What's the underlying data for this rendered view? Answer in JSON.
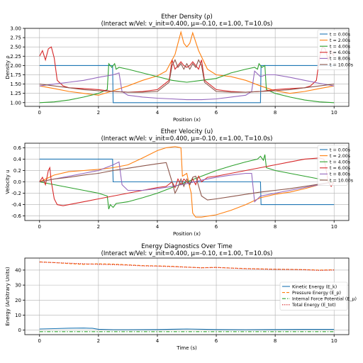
{
  "chart_data": [
    {
      "type": "line",
      "title": "Ether Density (ρ)",
      "subtitle": "(Interact w/Vel: v_init=0.400, μ=-0.10, ε=1.00, T=10.0s)",
      "xlabel": "Position (x)",
      "ylabel": "Density ρ",
      "xlim": [
        -0.5,
        10.5
      ],
      "ylim": [
        0.9,
        3.0
      ],
      "xticks": [
        0,
        2,
        4,
        6,
        8,
        10
      ],
      "yticks": [
        1.0,
        1.25,
        1.5,
        1.75,
        2.0,
        2.25,
        2.5,
        2.75,
        3.0
      ],
      "ytick_labels": [
        "1.00",
        "1.25",
        "1.50",
        "1.75",
        "2.00",
        "2.25",
        "2.50",
        "2.75",
        "3.00"
      ],
      "grid": true,
      "legend": "top-right",
      "series": [
        {
          "name": "t = 0.00s",
          "color": "#1f77b4",
          "style": "solid",
          "x": [
            0,
            2.48,
            2.5,
            7.5,
            7.52,
            10
          ],
          "y": [
            2.0,
            2.0,
            1.0,
            1.0,
            2.0,
            2.0
          ]
        },
        {
          "name": "t = 2.00s",
          "color": "#ff7f0e",
          "style": "solid",
          "x": [
            0,
            0.5,
            1.0,
            1.5,
            2.0,
            2.5,
            3.0,
            3.5,
            4.0,
            4.3,
            4.6,
            4.8,
            4.9,
            5.0,
            5.1,
            5.2,
            5.4,
            5.7,
            6.0,
            6.5,
            7.0,
            7.5,
            8.0,
            8.5,
            9.0,
            9.5,
            10
          ],
          "y": [
            1.45,
            1.38,
            1.3,
            1.25,
            1.2,
            1.32,
            1.45,
            1.6,
            1.72,
            1.85,
            2.3,
            2.9,
            2.6,
            2.5,
            2.6,
            2.88,
            2.4,
            1.9,
            1.75,
            1.7,
            1.6,
            1.45,
            1.32,
            1.25,
            1.3,
            1.38,
            1.45
          ]
        },
        {
          "name": "t = 4.00s",
          "color": "#2ca02c",
          "style": "solid",
          "x": [
            0,
            0.5,
            1.0,
            1.5,
            2.0,
            2.3,
            2.35,
            2.45,
            2.55,
            2.6,
            2.7,
            3.0,
            3.5,
            4.0,
            4.5,
            5.0,
            5.5,
            6.0,
            6.5,
            7.0,
            7.3,
            7.4,
            7.45,
            7.55,
            7.65,
            7.7,
            8.0,
            8.5,
            9.0,
            9.5,
            10
          ],
          "y": [
            1.0,
            1.02,
            1.07,
            1.15,
            1.25,
            1.35,
            2.05,
            1.95,
            2.05,
            1.9,
            1.95,
            1.9,
            1.8,
            1.7,
            1.6,
            1.55,
            1.6,
            1.65,
            1.8,
            1.9,
            1.95,
            1.9,
            2.05,
            1.95,
            2.0,
            1.35,
            1.25,
            1.15,
            1.07,
            1.02,
            1.0
          ]
        },
        {
          "name": "t = 6.00s",
          "color": "#d62728",
          "style": "solid",
          "x": [
            0,
            0.1,
            0.2,
            0.3,
            0.4,
            0.5,
            0.6,
            0.8,
            1.0,
            1.5,
            2.0,
            2.5,
            3.0,
            3.5,
            4.0,
            4.4,
            4.5,
            4.6,
            4.7,
            4.8,
            4.9,
            5.0,
            5.1,
            5.2,
            5.3,
            5.4,
            5.5,
            5.6,
            6.0,
            6.5,
            7.0,
            7.5,
            8.0,
            8.5,
            9.0,
            9.2,
            9.4,
            9.5,
            9.6,
            9.7,
            9.8,
            9.9,
            10
          ],
          "y": [
            2.25,
            2.4,
            2.15,
            2.45,
            2.5,
            2.2,
            1.6,
            1.45,
            1.4,
            1.38,
            1.35,
            1.3,
            1.28,
            1.3,
            1.35,
            1.6,
            2.15,
            1.9,
            2.0,
            2.1,
            2.0,
            1.95,
            2.0,
            2.1,
            2.0,
            1.9,
            2.15,
            1.6,
            1.35,
            1.3,
            1.28,
            1.3,
            1.35,
            1.38,
            1.4,
            1.45,
            1.6,
            2.2,
            2.5,
            2.45,
            2.15,
            2.4,
            2.25
          ]
        },
        {
          "name": "t = 8.00s",
          "color": "#9467bd",
          "style": "solid",
          "x": [
            0,
            0.5,
            1.0,
            1.5,
            2.0,
            2.5,
            2.7,
            2.8,
            3.0,
            3.5,
            4.0,
            4.5,
            5.0,
            5.5,
            6.0,
            6.5,
            7.0,
            7.2,
            7.3,
            7.5,
            7.7,
            8.0,
            8.5,
            9.0,
            9.5,
            10
          ],
          "y": [
            1.45,
            1.5,
            1.55,
            1.6,
            1.68,
            1.75,
            1.8,
            1.3,
            1.2,
            1.15,
            1.12,
            1.1,
            1.08,
            1.08,
            1.1,
            1.15,
            1.2,
            1.3,
            1.85,
            1.7,
            1.75,
            1.75,
            1.68,
            1.6,
            1.52,
            1.45
          ]
        },
        {
          "name": "t = 10.00s",
          "color": "#8c564b",
          "style": "solid",
          "x": [
            0,
            0.5,
            1.0,
            1.5,
            2.0,
            2.5,
            3.0,
            3.5,
            4.0,
            4.4,
            4.5,
            4.6,
            4.7,
            4.8,
            4.9,
            5.0,
            5.1,
            5.2,
            5.3,
            5.4,
            5.5,
            5.6,
            6.0,
            6.5,
            7.0,
            7.5,
            8.0,
            8.5,
            9.0,
            9.5,
            10
          ],
          "y": [
            1.5,
            1.45,
            1.4,
            1.35,
            1.32,
            1.3,
            1.28,
            1.28,
            1.3,
            1.55,
            2.0,
            2.15,
            1.95,
            2.05,
            1.9,
            2.05,
            1.9,
            2.05,
            1.95,
            2.15,
            2.0,
            1.55,
            1.3,
            1.28,
            1.28,
            1.3,
            1.32,
            1.35,
            1.4,
            1.45,
            1.5
          ]
        }
      ]
    },
    {
      "type": "line",
      "title": "Ether Velocity (u)",
      "subtitle": "(Interact w/Vel: v_init=0.400, μ=-0.10, ε=1.00, T=10.0s)",
      "xlabel": "Position (x)",
      "ylabel": "Velocity u",
      "xlim": [
        -0.5,
        10.5
      ],
      "ylim": [
        -0.68,
        0.68
      ],
      "xticks": [
        0,
        2,
        4,
        6,
        8,
        10
      ],
      "yticks": [
        -0.6,
        -0.4,
        -0.2,
        0.0,
        0.2,
        0.4,
        0.6
      ],
      "ytick_labels": [
        "-0.6",
        "-0.4",
        "-0.2",
        "0.0",
        "0.2",
        "0.4",
        "0.6"
      ],
      "grid": true,
      "legend": "top-right",
      "series": [
        {
          "name": "t = 0.00s",
          "color": "#1f77b4",
          "style": "solid",
          "x": [
            0,
            2.48,
            2.5,
            7.5,
            7.52,
            10
          ],
          "y": [
            0.4,
            0.4,
            0.0,
            0.0,
            -0.4,
            -0.4
          ]
        },
        {
          "name": "t = 2.00s",
          "color": "#ff7f0e",
          "style": "solid",
          "x": [
            0,
            0.5,
            1.0,
            1.5,
            2.0,
            2.5,
            3.0,
            3.5,
            4.0,
            4.3,
            4.6,
            4.8,
            4.85,
            5.0,
            5.1,
            5.15,
            5.2,
            5.3,
            5.5,
            6.0,
            6.5,
            7.0,
            7.5,
            8.0,
            8.5,
            9.0,
            9.5,
            10
          ],
          "y": [
            0.0,
            0.12,
            0.18,
            0.2,
            0.22,
            0.25,
            0.3,
            0.42,
            0.55,
            0.6,
            0.62,
            0.6,
            0.1,
            0.15,
            -0.1,
            -0.2,
            -0.55,
            -0.62,
            -0.62,
            -0.58,
            -0.5,
            -0.4,
            -0.28,
            -0.22,
            -0.18,
            -0.12,
            -0.05,
            0.0
          ]
        },
        {
          "name": "t = 4.00s",
          "color": "#2ca02c",
          "style": "solid",
          "x": [
            0,
            0.5,
            1.0,
            1.5,
            2.0,
            2.3,
            2.35,
            2.4,
            2.5,
            2.6,
            3.0,
            3.5,
            4.0,
            4.5,
            5.0,
            5.5,
            6.0,
            6.5,
            7.0,
            7.4,
            7.5,
            7.6,
            7.65,
            7.7,
            8.0,
            8.5,
            9.0,
            9.5,
            10
          ],
          "y": [
            0.0,
            -0.05,
            -0.1,
            -0.15,
            -0.2,
            -0.25,
            -0.48,
            -0.4,
            -0.45,
            -0.38,
            -0.35,
            -0.28,
            -0.2,
            -0.1,
            0.0,
            0.1,
            0.2,
            0.28,
            0.35,
            0.4,
            0.45,
            0.38,
            0.48,
            0.25,
            0.2,
            0.15,
            0.1,
            0.05,
            0.0
          ]
        },
        {
          "name": "t = 6.00s",
          "color": "#d62728",
          "style": "solid",
          "x": [
            0,
            0.1,
            0.2,
            0.3,
            0.35,
            0.4,
            0.5,
            0.6,
            0.8,
            1.0,
            1.5,
            2.0,
            2.5,
            3.0,
            3.5,
            4.0,
            4.3,
            4.5,
            4.6,
            4.7,
            4.8,
            4.9,
            5.0,
            5.1,
            5.2,
            5.3,
            5.4,
            5.5,
            5.7,
            6.0,
            6.5,
            7.0,
            7.5,
            8.0,
            8.5,
            9.0,
            9.5,
            9.65,
            9.7,
            9.8,
            9.9,
            10
          ],
          "y": [
            0.0,
            0.08,
            -0.05,
            0.2,
            0.25,
            0.0,
            -0.3,
            -0.4,
            -0.42,
            -0.4,
            -0.35,
            -0.3,
            -0.25,
            -0.2,
            -0.15,
            -0.1,
            -0.08,
            0.0,
            -0.1,
            0.05,
            -0.05,
            0.05,
            0.0,
            -0.05,
            0.05,
            -0.05,
            0.1,
            0.0,
            0.08,
            0.1,
            0.15,
            0.2,
            0.25,
            0.3,
            0.35,
            0.4,
            0.42,
            0.4,
            0.3,
            0.0,
            -0.08,
            0.0
          ]
        },
        {
          "name": "t = 8.00s",
          "color": "#9467bd",
          "style": "solid",
          "x": [
            0,
            0.5,
            1.0,
            1.5,
            2.0,
            2.5,
            2.7,
            2.8,
            3.0,
            3.5,
            4.0,
            4.5,
            5.0,
            5.5,
            6.0,
            6.5,
            7.0,
            7.2,
            7.3,
            7.5,
            8.0,
            8.5,
            9.0,
            9.5,
            10
          ],
          "y": [
            0.0,
            0.05,
            0.1,
            0.15,
            0.2,
            0.3,
            0.35,
            -0.05,
            -0.15,
            -0.15,
            -0.12,
            -0.08,
            -0.03,
            0.03,
            0.08,
            0.12,
            0.15,
            0.15,
            -0.35,
            -0.25,
            -0.2,
            -0.15,
            -0.1,
            -0.05,
            0.0
          ]
        },
        {
          "name": "t = 10.00s",
          "color": "#8c564b",
          "style": "solid",
          "x": [
            0,
            0.5,
            1.0,
            1.5,
            2.0,
            2.5,
            3.0,
            3.5,
            4.0,
            4.3,
            4.5,
            4.6,
            4.7,
            4.8,
            4.9,
            5.0,
            5.1,
            5.2,
            5.3,
            5.5,
            5.7,
            6.0,
            6.5,
            7.0,
            7.5,
            8.0,
            8.5,
            9.0,
            9.5,
            10
          ],
          "y": [
            0.0,
            0.05,
            0.08,
            0.12,
            0.15,
            0.2,
            0.24,
            0.28,
            0.32,
            0.34,
            0.0,
            -0.2,
            -0.1,
            0.05,
            -0.08,
            0.05,
            -0.05,
            0.08,
            0.1,
            -0.25,
            -0.32,
            -0.3,
            -0.26,
            -0.22,
            -0.18,
            -0.15,
            -0.12,
            -0.08,
            -0.04,
            0.0
          ]
        }
      ]
    },
    {
      "type": "line",
      "title": "Energy Diagnostics Over Time",
      "subtitle": "(Interact w/Vel: v_init=0.400, μ=-0.10, ε=1.00, T=10.0s)",
      "xlabel": "Time (s)",
      "ylabel": "Energy (Arbitrary Units)",
      "xlim": [
        -0.5,
        10.5
      ],
      "ylim": [
        -3,
        48
      ],
      "xticks": [
        0,
        2,
        4,
        6,
        8,
        10
      ],
      "yticks": [
        0,
        10,
        20,
        30,
        40
      ],
      "ytick_labels": [
        "0",
        "10",
        "20",
        "30",
        "40"
      ],
      "grid": true,
      "legend": "center-right",
      "series": [
        {
          "name": "Kinetic Energy (E_k)",
          "color": "#1f77b4",
          "style": "solid",
          "x": [
            0,
            0.5,
            1.0,
            1.5,
            1.8,
            2.0,
            2.5,
            3.0,
            4.0,
            5.0,
            6.0,
            7.0,
            8.0,
            9.0,
            10
          ],
          "y": [
            0.8,
            1.0,
            1.3,
            1.4,
            1.2,
            0.6,
            0.3,
            0.3,
            0.4,
            0.8,
            0.4,
            0.3,
            0.4,
            0.5,
            0.5
          ]
        },
        {
          "name": "Pressure Energy (E_p)",
          "color": "#ff7f0e",
          "style": "dashed",
          "x": [
            0,
            0.5,
            1.0,
            1.5,
            2.0,
            2.5,
            3.0,
            3.5,
            4.0,
            4.5,
            5.0,
            5.5,
            6.0,
            6.5,
            7.0,
            7.5,
            8.0,
            8.5,
            9.0,
            9.5,
            10
          ],
          "y": [
            45.5,
            45.0,
            44.3,
            43.8,
            44.2,
            44.0,
            43.5,
            43.0,
            42.8,
            42.5,
            42.0,
            41.6,
            41.8,
            41.4,
            41.0,
            40.8,
            40.6,
            40.5,
            40.3,
            40.0,
            40.2
          ]
        },
        {
          "name": "Internal Force Potential (E_μ)",
          "color": "#2ca02c",
          "style": "dashdot",
          "x": [
            0,
            10
          ],
          "y": [
            -1.0,
            -1.0
          ]
        },
        {
          "name": "Total Energy (E_tot)",
          "color": "#d62728",
          "style": "dotted",
          "x": [
            0,
            0.5,
            1.0,
            1.5,
            2.0,
            2.5,
            3.0,
            3.5,
            4.0,
            4.5,
            5.0,
            5.5,
            6.0,
            6.5,
            7.0,
            7.5,
            8.0,
            8.5,
            9.0,
            9.5,
            10
          ],
          "y": [
            45.3,
            45.0,
            44.6,
            44.2,
            43.8,
            43.6,
            43.3,
            42.8,
            42.6,
            42.3,
            41.9,
            41.5,
            41.7,
            41.3,
            40.9,
            40.7,
            40.5,
            40.4,
            40.2,
            39.8,
            40.0
          ]
        }
      ]
    }
  ]
}
